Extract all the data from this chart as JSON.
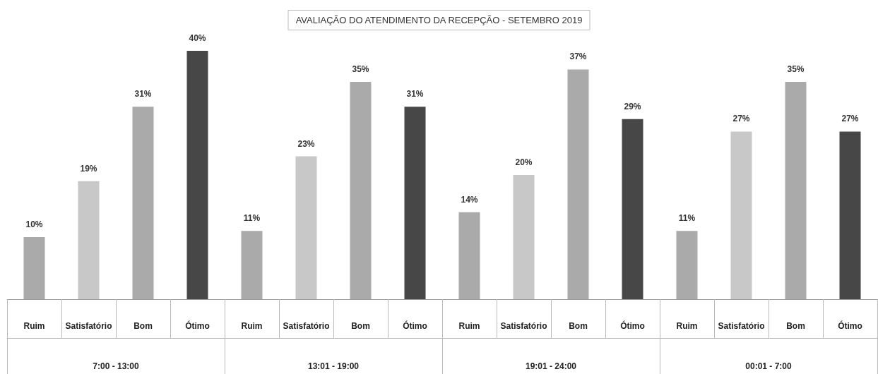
{
  "chart_data": {
    "type": "bar",
    "title": "AVALIAÇÃO DO ATENDIMENTO DA RECEPÇÃO - SETEMBRO 2019",
    "categories": [
      "Ruim",
      "Satisfatório",
      "Bom",
      "Ótimo",
      "Ruim",
      "Satisfatório",
      "Bom",
      "Ótimo",
      "Ruim",
      "Satisfatório",
      "Bom",
      "Ótimo",
      "Ruim",
      "Satisfatório",
      "Bom",
      "Ótimo"
    ],
    "values": [
      10,
      19,
      31,
      40,
      11,
      23,
      35,
      31,
      14,
      20,
      37,
      29,
      11,
      27,
      35,
      27
    ],
    "value_labels": [
      "10%",
      "19%",
      "31%",
      "40%",
      "11%",
      "23%",
      "35%",
      "31%",
      "14%",
      "20%",
      "37%",
      "29%",
      "11%",
      "27%",
      "35%",
      "27%"
    ],
    "colors": [
      "#aaaaaa",
      "#c8c8c8",
      "#aaaaaa",
      "#474747",
      "#aaaaaa",
      "#c8c8c8",
      "#aaaaaa",
      "#474747",
      "#aaaaaa",
      "#c8c8c8",
      "#aaaaaa",
      "#474747",
      "#aaaaaa",
      "#c8c8c8",
      "#aaaaaa",
      "#474747"
    ],
    "annotations": [
      "7:00 - 13:00",
      "13:01 - 19:00",
      "19:01 - 24:00",
      "00:01 - 7:00"
    ],
    "grid": false
  }
}
